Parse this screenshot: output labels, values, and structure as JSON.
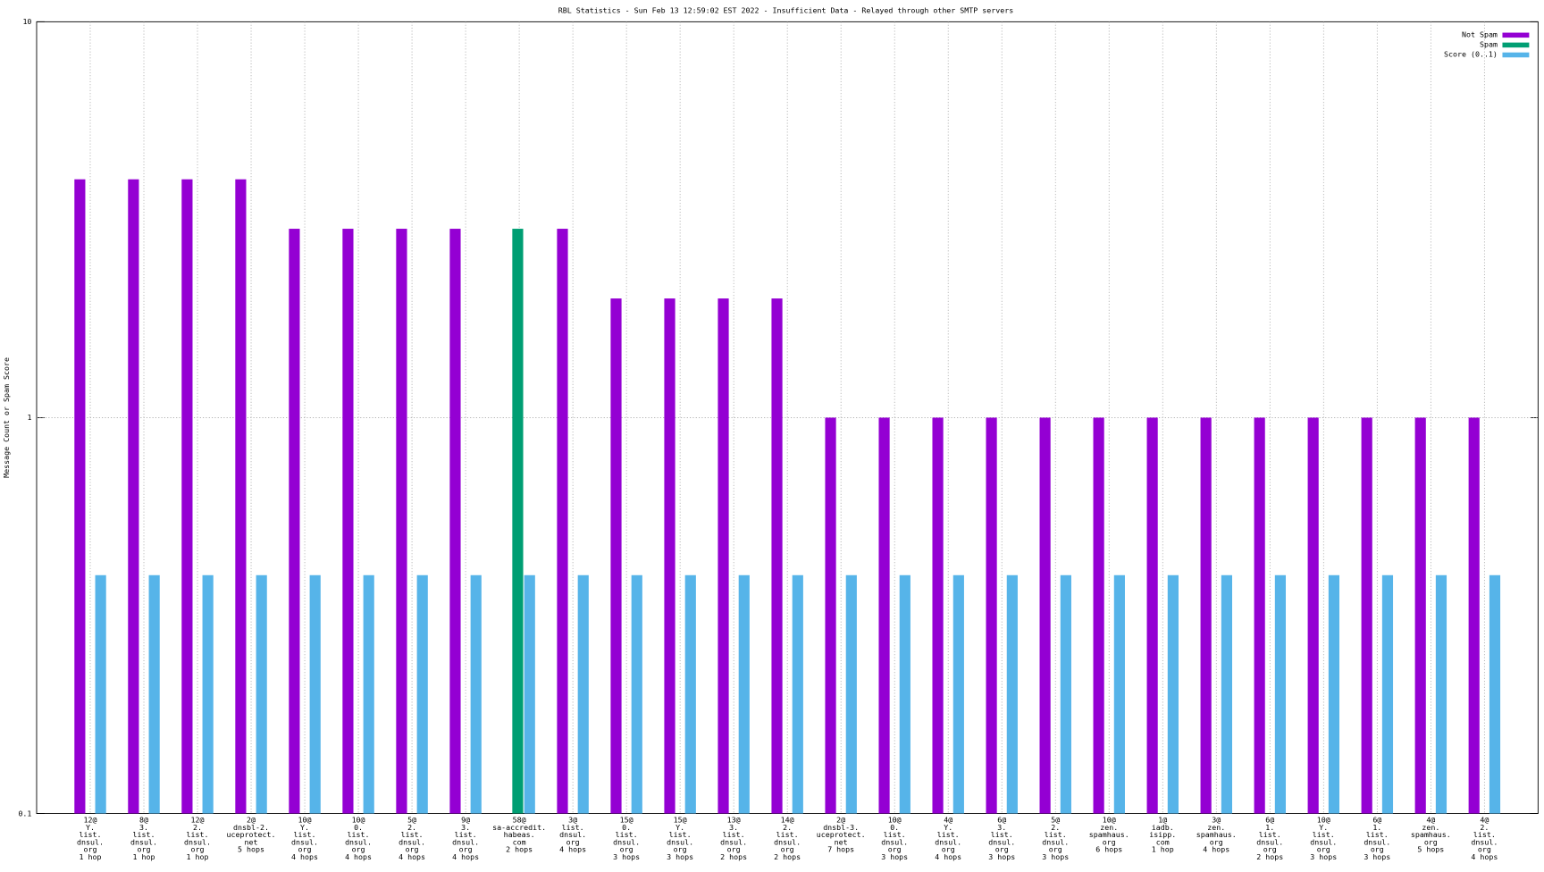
{
  "chart_data": {
    "type": "bar",
    "title": "RBL Statistics - Sun Feb 13 12:59:02 EST 2022 - Insufficient Data - Relayed through other SMTP servers",
    "y_label": "Message Count or Spam Score",
    "categories": [
      [
        "12@",
        "Y.",
        "list.",
        "dnsul.",
        "org",
        "1 hop"
      ],
      [
        "8@",
        "3.",
        "list.",
        "dnsul.",
        "org",
        "1 hop"
      ],
      [
        "12@",
        "2.",
        "list.",
        "dnsul.",
        "org",
        "1 hop"
      ],
      [
        "2@",
        "dnsbl-2.",
        "uceprotect.",
        "net",
        "5 hops"
      ],
      [
        "10@",
        "Y.",
        "list.",
        "dnsul.",
        "org",
        "4 hops"
      ],
      [
        "10@",
        "0.",
        "list.",
        "dnsul.",
        "org",
        "4 hops"
      ],
      [
        "5@",
        "2.",
        "list.",
        "dnsul.",
        "org",
        "4 hops"
      ],
      [
        "9@",
        "3.",
        "list.",
        "dnsul.",
        "org",
        "4 hops"
      ],
      [
        "58@",
        "sa-accredit.",
        "habeas.",
        "com",
        "2 hops"
      ],
      [
        "3@",
        "list.",
        "dnsul.",
        "org",
        "4 hops"
      ],
      [
        "15@",
        "0.",
        "list.",
        "dnsul.",
        "org",
        "3 hops"
      ],
      [
        "15@",
        "Y.",
        "list.",
        "dnsul.",
        "org",
        "3 hops"
      ],
      [
        "13@",
        "3.",
        "list.",
        "dnsul.",
        "org",
        "2 hops"
      ],
      [
        "14@",
        "2.",
        "list.",
        "dnsul.",
        "org",
        "2 hops"
      ],
      [
        "2@",
        "dnsbl-3.",
        "uceprotect.",
        "net",
        "7 hops"
      ],
      [
        "10@",
        "0.",
        "list.",
        "dnsul.",
        "org",
        "3 hops"
      ],
      [
        "4@",
        "Y.",
        "list.",
        "dnsul.",
        "org",
        "4 hops"
      ],
      [
        "6@",
        "3.",
        "list.",
        "dnsul.",
        "org",
        "3 hops"
      ],
      [
        "5@",
        "2.",
        "list.",
        "dnsul.",
        "org",
        "3 hops"
      ],
      [
        "10@",
        "zen.",
        "spamhaus.",
        "org",
        "6 hops"
      ],
      [
        "1@",
        "iadb.",
        "isipp.",
        "com",
        "1 hop"
      ],
      [
        "3@",
        "zen.",
        "spamhaus.",
        "org",
        "4 hops"
      ],
      [
        "6@",
        "1.",
        "list.",
        "dnsul.",
        "org",
        "2 hops"
      ],
      [
        "10@",
        "Y.",
        "list.",
        "dnsul.",
        "org",
        "3 hops"
      ],
      [
        "6@",
        "1.",
        "list.",
        "dnsul.",
        "org",
        "3 hops"
      ],
      [
        "4@",
        "zen.",
        "spamhaus.",
        "org",
        "5 hops"
      ],
      [
        "4@",
        "2.",
        "list.",
        "dnsul.",
        "org",
        "4 hops"
      ]
    ],
    "series": [
      {
        "name": "Not Spam",
        "color": "#9400d3",
        "values": [
          4,
          4,
          4,
          4,
          3,
          3,
          3,
          3,
          null,
          3,
          2,
          2,
          2,
          2,
          1,
          1,
          1,
          1,
          1,
          1,
          1,
          1,
          1,
          1,
          1,
          1,
          1
        ]
      },
      {
        "name": "Spam",
        "color": "#009e73",
        "values": [
          null,
          null,
          null,
          null,
          null,
          null,
          null,
          null,
          3,
          null,
          null,
          null,
          null,
          null,
          null,
          null,
          null,
          null,
          null,
          null,
          null,
          null,
          null,
          null,
          null,
          null,
          null
        ]
      },
      {
        "name": "Score (0..1)",
        "color": "#56b4e9",
        "values": [
          0.4,
          0.4,
          0.4,
          0.4,
          0.4,
          0.4,
          0.4,
          0.4,
          0.4,
          0.4,
          0.4,
          0.4,
          0.4,
          0.4,
          0.4,
          0.4,
          0.4,
          0.4,
          0.4,
          0.4,
          0.4,
          0.4,
          0.4,
          0.4,
          0.4,
          0.4,
          0.4
        ]
      }
    ],
    "ylim": [
      0.1,
      10
    ],
    "yticks": [
      0.1,
      1,
      10
    ],
    "log_y": true,
    "grid": true,
    "legend": "top-right"
  }
}
